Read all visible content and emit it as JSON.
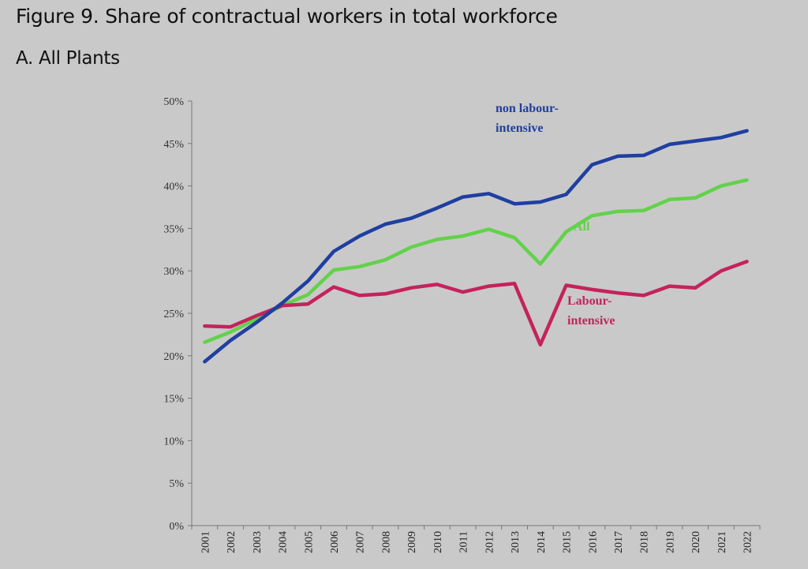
{
  "figure_title": "Figure 9. Share of contractual workers in total workforce",
  "panel_title": "A. All Plants",
  "chart_data": {
    "type": "line",
    "title": "Figure 9. Share of contractual workers in total workforce",
    "subtitle": "A. All Plants",
    "xlabel": "",
    "ylabel": "",
    "ylim": [
      0,
      50
    ],
    "yticks": [
      "0%",
      "5%",
      "10%",
      "15%",
      "20%",
      "25%",
      "30%",
      "35%",
      "40%",
      "45%",
      "50%"
    ],
    "categories": [
      "2001",
      "2002",
      "2003",
      "2004",
      "2005",
      "2006",
      "2007",
      "2008",
      "2009",
      "2010",
      "2011",
      "2012",
      "2013",
      "2014",
      "2015",
      "2016",
      "2017",
      "2018",
      "2019",
      "2020",
      "2021",
      "2022"
    ],
    "series": [
      {
        "name": "non labour-intensive",
        "label_lines": [
          "non labour-",
          "intensive"
        ],
        "color": "#1f3fa0",
        "values": [
          19.3,
          21.8,
          23.9,
          26.2,
          28.8,
          32.3,
          34.1,
          35.5,
          36.2,
          37.4,
          38.7,
          39.1,
          37.9,
          38.1,
          39.0,
          42.5,
          43.5,
          43.6,
          44.9,
          45.3,
          45.7,
          46.5
        ]
      },
      {
        "name": "All",
        "label_lines": [
          "All"
        ],
        "color": "#62d24a",
        "values": [
          21.6,
          22.8,
          24.3,
          25.9,
          27.2,
          30.1,
          30.5,
          31.3,
          32.8,
          33.7,
          34.1,
          34.9,
          33.9,
          30.8,
          34.6,
          36.5,
          37.0,
          37.1,
          38.4,
          38.6,
          40.0,
          40.7
        ]
      },
      {
        "name": "Labour-intensive",
        "label_lines": [
          "Labour-",
          "intensive"
        ],
        "color": "#c4235c",
        "values": [
          23.5,
          23.4,
          24.7,
          25.9,
          26.1,
          28.1,
          27.1,
          27.3,
          28.0,
          28.4,
          27.5,
          28.2,
          28.5,
          21.3,
          28.3,
          27.8,
          27.4,
          27.1,
          28.2,
          28.0,
          30.0,
          31.1
        ]
      }
    ]
  }
}
